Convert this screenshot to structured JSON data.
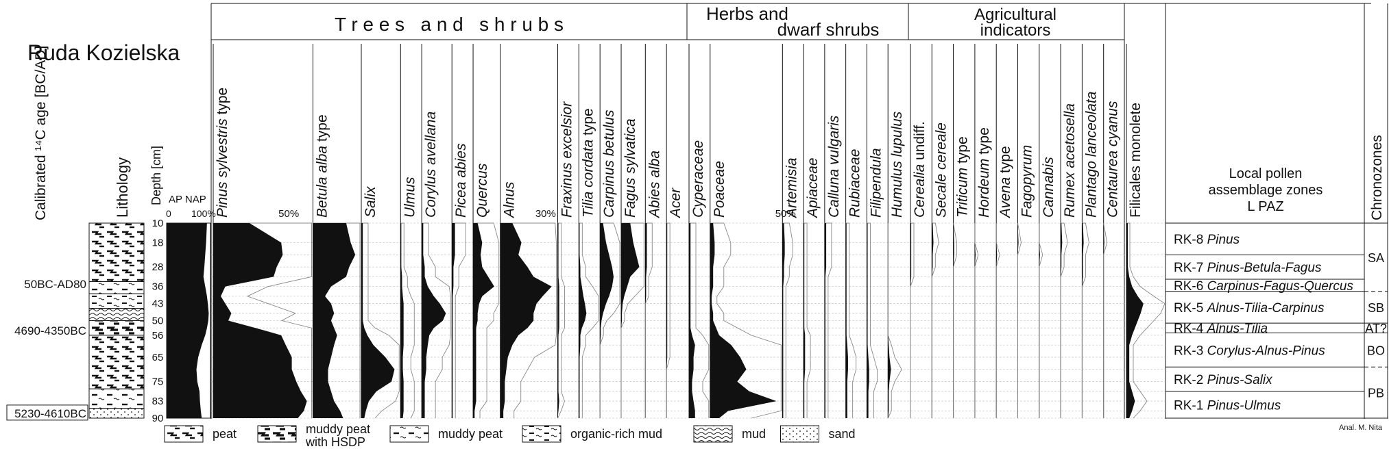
{
  "site_title": "Ruda Kozielska",
  "columns": {
    "age": "Calibrated ¹⁴C age [BC/AD]",
    "lithology": "Lithology",
    "depth": "Depth [cm]",
    "apnap": "AP NAP",
    "apnap_scale_0": "0",
    "apnap_scale_100": "100%"
  },
  "groups": {
    "trees": "T r e e s   a n d   s h r u b s",
    "herbs_line1": "Herbs and",
    "herbs_line2": "dwarf shrubs",
    "agri_line1": "Agricultural",
    "agri_line2": "indicators"
  },
  "zone_column": {
    "title_line1": "Local pollen",
    "title_line2": "assemblage zones",
    "title_line3": "L PAZ",
    "chronozones_title": "Chronozones"
  },
  "author": "Anal. M. Nita",
  "chart_data": {
    "type": "area",
    "title": "Ruda Kozielska",
    "ylabel": "Depth [cm]",
    "depths": [
      10,
      18,
      23,
      28,
      32,
      36,
      40,
      43,
      47,
      50,
      53,
      56,
      60,
      65,
      70,
      75,
      79,
      83,
      87,
      90
    ],
    "depth_ticks": [
      10,
      18,
      28,
      36,
      43,
      50,
      56,
      65,
      75,
      83,
      90
    ],
    "ap": [
      92,
      90,
      88,
      86,
      84,
      88,
      92,
      94,
      96,
      95,
      92,
      88,
      80,
      72,
      68,
      70,
      75,
      76,
      78,
      80
    ],
    "taxa": [
      {
        "name": "Pinus sylvestris",
        "suffix": " type",
        "group": "trees",
        "scale_label": "50%",
        "values": [
          24,
          45,
          46,
          42,
          40,
          8,
          5,
          8,
          12,
          10,
          28,
          45,
          48,
          52,
          52,
          55,
          58,
          62,
          60,
          56
        ]
      },
      {
        "name": "Betula alba",
        "suffix": " type",
        "group": "trees",
        "values": [
          22,
          25,
          28,
          24,
          22,
          12,
          8,
          12,
          14,
          12,
          14,
          16,
          14,
          12,
          10,
          10,
          12,
          14,
          18,
          20
        ]
      },
      {
        "name": "Salix",
        "suffix": "",
        "group": "trees",
        "values": [
          1,
          1,
          1,
          1,
          1,
          1,
          1,
          1,
          1,
          1,
          2,
          4,
          8,
          16,
          22,
          20,
          10,
          5,
          3,
          2
        ]
      },
      {
        "name": "Ulmus",
        "suffix": "",
        "group": "trees",
        "values": [
          0.5,
          0.5,
          0.5,
          0.5,
          1,
          1,
          1.5,
          2,
          2,
          2,
          2,
          2,
          2,
          1.5,
          1.5,
          2,
          2,
          2,
          2,
          1.5
        ]
      },
      {
        "name": "Corylus avellana",
        "suffix": "",
        "group": "trees",
        "values": [
          1,
          1,
          1,
          2,
          2,
          4,
          8,
          12,
          16,
          14,
          8,
          5,
          4,
          3,
          3,
          2,
          2,
          2,
          2,
          2
        ]
      },
      {
        "name": "Picea abies",
        "suffix": "",
        "group": "trees",
        "values": [
          2,
          2,
          2,
          1,
          1,
          1,
          0.5,
          0.5,
          0.5,
          0.5,
          0.5,
          0.5,
          0.5,
          0.5,
          0.5,
          0.5,
          0.5,
          0.5,
          0.5,
          0.5
        ]
      },
      {
        "name": "Quercus",
        "suffix": "",
        "group": "trees",
        "values": [
          3,
          6,
          5,
          6,
          10,
          14,
          6,
          4,
          3,
          3,
          2,
          2,
          2,
          2,
          2,
          2,
          2,
          2,
          1,
          1
        ]
      },
      {
        "name": "Alnus",
        "suffix": "",
        "group": "trees",
        "scale_label": "30%",
        "values": [
          8,
          14,
          12,
          18,
          22,
          34,
          28,
          24,
          22,
          22,
          18,
          12,
          8,
          5,
          4,
          3,
          3,
          3,
          2,
          2
        ]
      },
      {
        "name": "Fraxinus excelsior",
        "suffix": "",
        "group": "trees",
        "values": [
          0.5,
          0.5,
          0.5,
          0.5,
          0.5,
          1,
          1,
          1,
          1,
          1,
          1,
          0.5,
          0.5,
          0.5,
          0.5,
          0.5,
          0.5,
          1,
          0.5,
          0
        ]
      },
      {
        "name": "Tilia cordata",
        "suffix": " type",
        "group": "trees",
        "values": [
          0.5,
          0.5,
          0.5,
          1,
          1,
          2,
          3,
          4,
          5,
          4,
          2,
          1,
          1,
          0.5,
          0.5,
          0.5,
          0.5,
          0.5,
          0.5,
          0.5
        ]
      },
      {
        "name": "Carpinus betulus",
        "suffix": "",
        "group": "trees",
        "values": [
          2,
          4,
          6,
          8,
          9,
          8,
          6,
          4,
          2,
          1,
          0.5,
          0.5,
          0,
          0,
          0,
          0,
          0,
          0,
          0,
          0
        ]
      },
      {
        "name": "Fagus sylvatica",
        "suffix": "",
        "group": "trees",
        "values": [
          6,
          8,
          10,
          12,
          6,
          4,
          2,
          1,
          0.5,
          0.5,
          0,
          0,
          0,
          0,
          0,
          0,
          0,
          0,
          0,
          0
        ]
      },
      {
        "name": "Abies alba",
        "suffix": "",
        "group": "trees",
        "values": [
          1,
          1,
          1,
          1,
          0.5,
          0.5,
          0.5,
          0,
          0,
          0,
          0,
          0,
          0,
          0,
          0,
          0,
          0,
          0,
          0,
          0
        ]
      },
      {
        "name": "Acer",
        "suffix": "",
        "group": "trees",
        "values": [
          0.5,
          0.5,
          0.5,
          0.5,
          0.5,
          0.5,
          0.5,
          0.5,
          0.5,
          0.5,
          0.5,
          0.5,
          0.5,
          0.5,
          0,
          0,
          0,
          0,
          0,
          0
        ]
      },
      {
        "name": "Cyperaceae",
        "suffix": "",
        "group": "herbs",
        "values": [
          1,
          1,
          1,
          1,
          1,
          1,
          1,
          1,
          1,
          1,
          1,
          2,
          4,
          3,
          3,
          2,
          2,
          3,
          4,
          4
        ]
      },
      {
        "name": "Poaceae",
        "suffix": "",
        "group": "herbs",
        "scale_label": "50%",
        "values": [
          2,
          3,
          3,
          2,
          2,
          2,
          1,
          1,
          2,
          2,
          4,
          6,
          14,
          20,
          24,
          18,
          26,
          44,
          12,
          6
        ]
      },
      {
        "name": "Artemisia",
        "suffix": "",
        "group": "herbs",
        "values": [
          1,
          1.5,
          1.5,
          1,
          1,
          0.5,
          0.5,
          0.5,
          0.5,
          0.5,
          0.5,
          0.5,
          0.5,
          0.5,
          0.5,
          0.5,
          0.5,
          0.5,
          0.5,
          0.5
        ]
      },
      {
        "name": "Apiaceae",
        "suffix": "",
        "group": "herbs",
        "values": [
          0.5,
          0.5,
          0.5,
          0.5,
          0.5,
          0.5,
          0.5,
          0.5,
          0.5,
          0.5,
          0.5,
          1,
          1,
          1,
          1,
          0.5,
          0.5,
          0.5,
          0.5,
          0.5
        ]
      },
      {
        "name": "Calluna vulgaris",
        "suffix": "",
        "group": "herbs",
        "values": [
          1,
          1,
          1,
          1,
          0.5,
          0.5,
          0.5,
          0.5,
          0.5,
          0.5,
          0.5,
          0.5,
          0.5,
          0.5,
          0.5,
          0.5,
          0.5,
          0.5,
          0.5,
          0.5
        ]
      },
      {
        "name": "Rubiaceae",
        "suffix": "",
        "group": "herbs",
        "values": [
          0.5,
          0.5,
          0.5,
          0.5,
          0.5,
          0.5,
          0.5,
          0.5,
          0.5,
          0.5,
          0.5,
          0.5,
          1,
          1.5,
          1.5,
          1,
          1,
          1,
          1,
          1
        ]
      },
      {
        "name": "Filipendula",
        "suffix": "",
        "group": "herbs",
        "values": [
          0.5,
          0.5,
          0.5,
          0.5,
          0.5,
          0.5,
          0.5,
          0.5,
          0.5,
          0.5,
          0.5,
          0.5,
          0.5,
          1,
          1.5,
          1.5,
          1,
          1,
          1,
          1
        ]
      },
      {
        "name": "Humulus lupulus",
        "suffix": "",
        "group": "herbs",
        "values": [
          0,
          0,
          0,
          0,
          0,
          0,
          0,
          0,
          0,
          0,
          0,
          0,
          0.5,
          1,
          2,
          1,
          0.5,
          0.5,
          0.5,
          0
        ]
      },
      {
        "name": "Cerealia",
        "suffix": " undiff.",
        "group": "agri",
        "values": [
          0.5,
          0.5,
          0.5,
          0.5,
          0.5,
          0,
          0,
          0,
          0,
          0,
          0,
          0,
          0,
          0,
          0,
          0,
          0,
          0,
          0,
          0
        ]
      },
      {
        "name": "Secale cereale",
        "suffix": "",
        "group": "agri",
        "values": [
          0.5,
          1,
          0.5,
          0.5,
          0,
          0,
          0,
          0,
          0,
          0,
          0,
          0,
          0,
          0,
          0,
          0,
          0,
          0,
          0,
          0
        ]
      },
      {
        "name": "Triticum",
        "suffix": " type",
        "group": "agri",
        "values": [
          0,
          0.5,
          0.5,
          0,
          0,
          0,
          0,
          0,
          0,
          0,
          0,
          0,
          0,
          0,
          0,
          0,
          0,
          0,
          0,
          0
        ]
      },
      {
        "name": "Hordeum",
        "suffix": " type",
        "group": "agri",
        "values": [
          0,
          0,
          0.5,
          0,
          0,
          0,
          0,
          0,
          0,
          0,
          0,
          0,
          0,
          0,
          0,
          0,
          0,
          0,
          0,
          0
        ]
      },
      {
        "name": "Avena",
        "suffix": " type",
        "group": "agri",
        "values": [
          0,
          0,
          0.5,
          0,
          0,
          0,
          0,
          0,
          0,
          0,
          0,
          0,
          0,
          0,
          0,
          0,
          0,
          0,
          0,
          0
        ]
      },
      {
        "name": "Fagopyrum",
        "suffix": "",
        "group": "agri",
        "values": [
          0,
          0.5,
          0,
          0,
          0,
          0,
          0,
          0,
          0,
          0,
          0,
          0,
          0,
          0,
          0,
          0,
          0,
          0,
          0,
          0
        ]
      },
      {
        "name": "Cannabis",
        "suffix": "",
        "group": "agri",
        "values": [
          0,
          0,
          0.5,
          0,
          0,
          0,
          0,
          0,
          0,
          0,
          0,
          0,
          0,
          0,
          0,
          0,
          0,
          0,
          0,
          0
        ]
      },
      {
        "name": "Rumex acetosella",
        "suffix": "",
        "group": "agri",
        "values": [
          0.5,
          1,
          0.5,
          0.5,
          0,
          0,
          0,
          0,
          0,
          0,
          0,
          0,
          0,
          0,
          0,
          0,
          0,
          0,
          0,
          0
        ]
      },
      {
        "name": "Plantago lanceolata",
        "suffix": "",
        "group": "agri",
        "values": [
          0.5,
          1,
          0.5,
          0.5,
          0.5,
          0,
          0,
          0,
          0,
          0,
          0,
          0,
          0,
          0,
          0,
          0,
          0,
          0,
          0,
          0
        ]
      },
      {
        "name": "Centaurea cyanus",
        "suffix": "",
        "group": "agri",
        "values": [
          0,
          0.5,
          0,
          0,
          0,
          0,
          0,
          0,
          0,
          0,
          0,
          0,
          0,
          0,
          0,
          0,
          0,
          0,
          0,
          0
        ]
      },
      {
        "name": "",
        "suffix": "Filicales monolete",
        "group": "other",
        "values": [
          0.5,
          0.5,
          0.5,
          0.5,
          1,
          2,
          4,
          6,
          5,
          4,
          3,
          2,
          1,
          1,
          1,
          1,
          2,
          3,
          2,
          1
        ]
      }
    ],
    "zones": [
      {
        "code": "RK-8",
        "name": "Pinus",
        "top": 10,
        "bottom": 23
      },
      {
        "code": "RK-7",
        "name": "Pinus-Betula-Fagus",
        "top": 23,
        "bottom": 33
      },
      {
        "code": "RK-6",
        "name": "Carpinus-Fagus-Quercus",
        "top": 33,
        "bottom": 38
      },
      {
        "code": "RK-5",
        "name": "Alnus-Tilia-Carpinus",
        "top": 38,
        "bottom": 51
      },
      {
        "code": "RK-4",
        "name": "Alnus-Tilia",
        "top": 51,
        "bottom": 55
      },
      {
        "code": "RK-3",
        "name": "Corylus-Alnus-Pinus",
        "top": 55,
        "bottom": 69
      },
      {
        "code": "RK-2",
        "name": "Pinus-Salix",
        "top": 69,
        "bottom": 79
      },
      {
        "code": "RK-1",
        "name": "Pinus-Ulmus",
        "top": 79,
        "bottom": 90
      }
    ],
    "chronozones": [
      {
        "label": "SA",
        "top": 10,
        "bottom": 38
      },
      {
        "label": "SB",
        "top": 38,
        "bottom": 51
      },
      {
        "label": "AT?",
        "top": 51,
        "bottom": 55
      },
      {
        "label": "BO",
        "top": 55,
        "bottom": 69
      },
      {
        "label": "PB",
        "top": 69,
        "bottom": 90
      }
    ],
    "dates": [
      {
        "label": "50BC-AD80",
        "depth": 35,
        "boxed": false
      },
      {
        "label": "4690-4350BC",
        "depth": 54,
        "boxed": false
      },
      {
        "label": "5230-4610BC",
        "depth": 88,
        "boxed": true
      }
    ],
    "lithology": [
      {
        "type": "peat",
        "top": 10,
        "bottom": 34
      },
      {
        "type": "muddy-peat",
        "top": 34,
        "bottom": 39
      },
      {
        "type": "organic-mud",
        "top": 39,
        "bottom": 45
      },
      {
        "type": "mud",
        "top": 45,
        "bottom": 50
      },
      {
        "type": "muddy-peat-hsdp",
        "top": 50,
        "bottom": 56
      },
      {
        "type": "peat",
        "top": 56,
        "bottom": 78
      },
      {
        "type": "muddy-peat",
        "top": 78,
        "bottom": 86
      },
      {
        "type": "sand",
        "top": 86,
        "bottom": 90
      }
    ],
    "legend": [
      {
        "type": "peat",
        "line1": "peat",
        "line2": ""
      },
      {
        "type": "muddy-peat-hsdp",
        "line1": "muddy peat",
        "line2": "with HSDP"
      },
      {
        "type": "muddy-peat",
        "line1": "muddy peat",
        "line2": ""
      },
      {
        "type": "organic-mud",
        "line1": "organic-rich mud",
        "line2": ""
      },
      {
        "type": "mud",
        "line1": "mud",
        "line2": ""
      },
      {
        "type": "sand",
        "line1": "sand",
        "line2": ""
      }
    ]
  }
}
